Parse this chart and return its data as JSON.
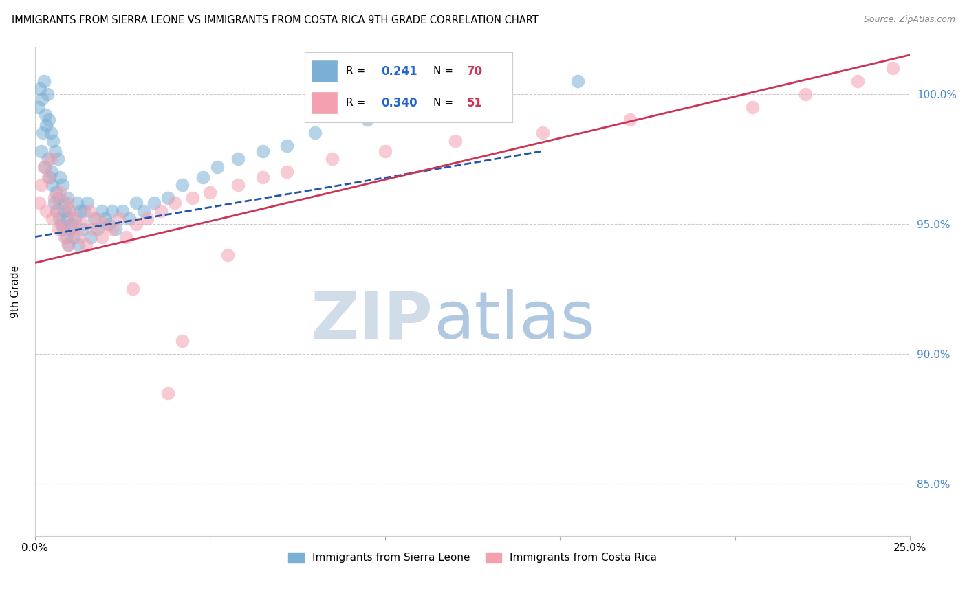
{
  "title": "IMMIGRANTS FROM SIERRA LEONE VS IMMIGRANTS FROM COSTA RICA 9TH GRADE CORRELATION CHART",
  "source": "Source: ZipAtlas.com",
  "ylabel": "9th Grade",
  "r_blue": 0.241,
  "n_blue": 70,
  "r_pink": 0.34,
  "n_pink": 51,
  "legend_label_blue": "Immigrants from Sierra Leone",
  "legend_label_pink": "Immigrants from Costa Rica",
  "xlim": [
    0.0,
    25.0
  ],
  "ylim": [
    83.0,
    101.8
  ],
  "yticks": [
    85.0,
    90.0,
    95.0,
    100.0
  ],
  "ytick_labels": [
    "85.0%",
    "90.0%",
    "95.0%",
    "100.0%"
  ],
  "blue_color": "#7bafd4",
  "pink_color": "#f4a0b0",
  "blue_line_color": "#2255aa",
  "pink_line_color": "#cc3355",
  "watermark_zip_color": "#d0dce8",
  "watermark_atlas_color": "#b0c8e0",
  "sierra_leone_x": [
    0.1,
    0.15,
    0.18,
    0.2,
    0.22,
    0.25,
    0.28,
    0.3,
    0.32,
    0.35,
    0.38,
    0.4,
    0.42,
    0.45,
    0.48,
    0.5,
    0.52,
    0.55,
    0.58,
    0.6,
    0.62,
    0.65,
    0.68,
    0.7,
    0.72,
    0.75,
    0.78,
    0.8,
    0.82,
    0.85,
    0.88,
    0.9,
    0.92,
    0.95,
    0.98,
    1.0,
    1.05,
    1.1,
    1.15,
    1.2,
    1.25,
    1.3,
    1.35,
    1.4,
    1.5,
    1.6,
    1.7,
    1.8,
    1.9,
    2.0,
    2.1,
    2.2,
    2.3,
    2.5,
    2.7,
    2.9,
    3.1,
    3.4,
    3.8,
    4.2,
    4.8,
    5.2,
    5.8,
    6.5,
    7.2,
    8.0,
    9.5,
    11.0,
    13.0,
    15.5
  ],
  "sierra_leone_y": [
    99.5,
    100.2,
    97.8,
    99.8,
    98.5,
    100.5,
    97.2,
    99.2,
    98.8,
    100.0,
    97.5,
    99.0,
    96.8,
    98.5,
    97.0,
    96.5,
    98.2,
    95.8,
    97.8,
    96.2,
    95.5,
    97.5,
    96.0,
    95.2,
    96.8,
    95.0,
    96.5,
    94.8,
    95.8,
    95.5,
    94.5,
    95.2,
    96.0,
    94.2,
    95.5,
    94.8,
    95.0,
    94.5,
    95.2,
    95.8,
    94.2,
    95.5,
    94.8,
    95.5,
    95.8,
    94.5,
    95.2,
    94.8,
    95.5,
    95.2,
    95.0,
    95.5,
    94.8,
    95.5,
    95.2,
    95.8,
    95.5,
    95.8,
    96.0,
    96.5,
    96.8,
    97.2,
    97.5,
    97.8,
    98.0,
    98.5,
    99.0,
    99.5,
    100.0,
    100.5
  ],
  "costa_rica_x": [
    0.12,
    0.18,
    0.25,
    0.32,
    0.38,
    0.45,
    0.5,
    0.55,
    0.62,
    0.68,
    0.72,
    0.78,
    0.85,
    0.9,
    0.95,
    1.0,
    1.08,
    1.15,
    1.25,
    1.35,
    1.45,
    1.55,
    1.65,
    1.75,
    1.9,
    2.0,
    2.2,
    2.4,
    2.6,
    2.9,
    3.2,
    3.6,
    4.0,
    4.5,
    5.0,
    5.8,
    6.5,
    7.2,
    8.5,
    10.0,
    12.0,
    14.5,
    17.0,
    20.5,
    22.0,
    23.5,
    24.5,
    5.5,
    3.8,
    4.2,
    2.8
  ],
  "costa_rica_y": [
    95.8,
    96.5,
    97.2,
    95.5,
    96.8,
    97.5,
    95.2,
    96.0,
    95.5,
    94.8,
    96.2,
    95.0,
    94.5,
    95.8,
    94.2,
    95.5,
    94.8,
    95.2,
    94.5,
    95.0,
    94.2,
    95.5,
    94.8,
    95.2,
    94.5,
    95.0,
    94.8,
    95.2,
    94.5,
    95.0,
    95.2,
    95.5,
    95.8,
    96.0,
    96.2,
    96.5,
    96.8,
    97.0,
    97.5,
    97.8,
    98.2,
    98.5,
    99.0,
    99.5,
    100.0,
    100.5,
    101.0,
    93.8,
    88.5,
    90.5,
    92.5
  ],
  "blue_trend_x": [
    0.0,
    14.5
  ],
  "blue_trend_y": [
    94.5,
    97.8
  ],
  "pink_trend_x": [
    0.0,
    25.0
  ],
  "pink_trend_y": [
    93.5,
    101.5
  ]
}
